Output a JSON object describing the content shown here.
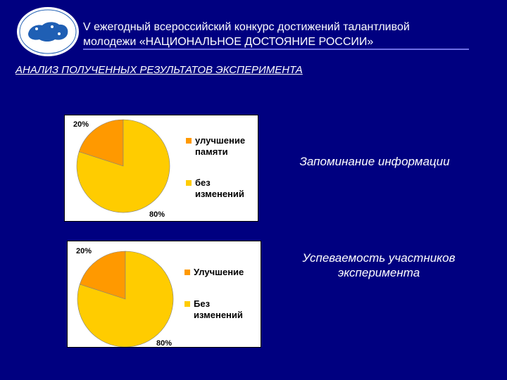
{
  "header": {
    "title_line1": "V ежегодный всероссийский конкурс достижений талантливой",
    "title_line2": "молодежи «НАЦИОНАЛЬНОЕ ДОСТОЯНИЕ РОССИИ»"
  },
  "section_title": "АНАЛИЗ  ПОЛУЧЕННЫХ РЕЗУЛЬТАТОВ ЭКСПЕРИМЕНТА",
  "colors": {
    "background": "#000080",
    "slice_main": "#FFCC00",
    "slice_minor": "#FF9900",
    "logo_map": "#1f5fb4"
  },
  "chart_data": [
    {
      "type": "pie",
      "caption": "Запоминание информации",
      "categories": [
        "улучшение памяти",
        "без изменений"
      ],
      "values": [
        20,
        80
      ],
      "data_labels": [
        "20%",
        "80%"
      ],
      "legend_lines": [
        [
          "улучшение",
          "памяти"
        ],
        [
          "без",
          "изменений"
        ]
      ],
      "colors": [
        "#FF9900",
        "#FFCC00"
      ],
      "legend": "right"
    },
    {
      "type": "pie",
      "caption_line1": "Успеваемость участников",
      "caption_line2": "эксперимента",
      "categories": [
        "Улучшение",
        "Без изменений"
      ],
      "values": [
        20,
        80
      ],
      "data_labels": [
        "20%",
        "80%"
      ],
      "legend_lines": [
        [
          "Улучшение"
        ],
        [
          "Без",
          "изменений"
        ]
      ],
      "colors": [
        "#FF9900",
        "#FFCC00"
      ],
      "legend": "right"
    }
  ]
}
